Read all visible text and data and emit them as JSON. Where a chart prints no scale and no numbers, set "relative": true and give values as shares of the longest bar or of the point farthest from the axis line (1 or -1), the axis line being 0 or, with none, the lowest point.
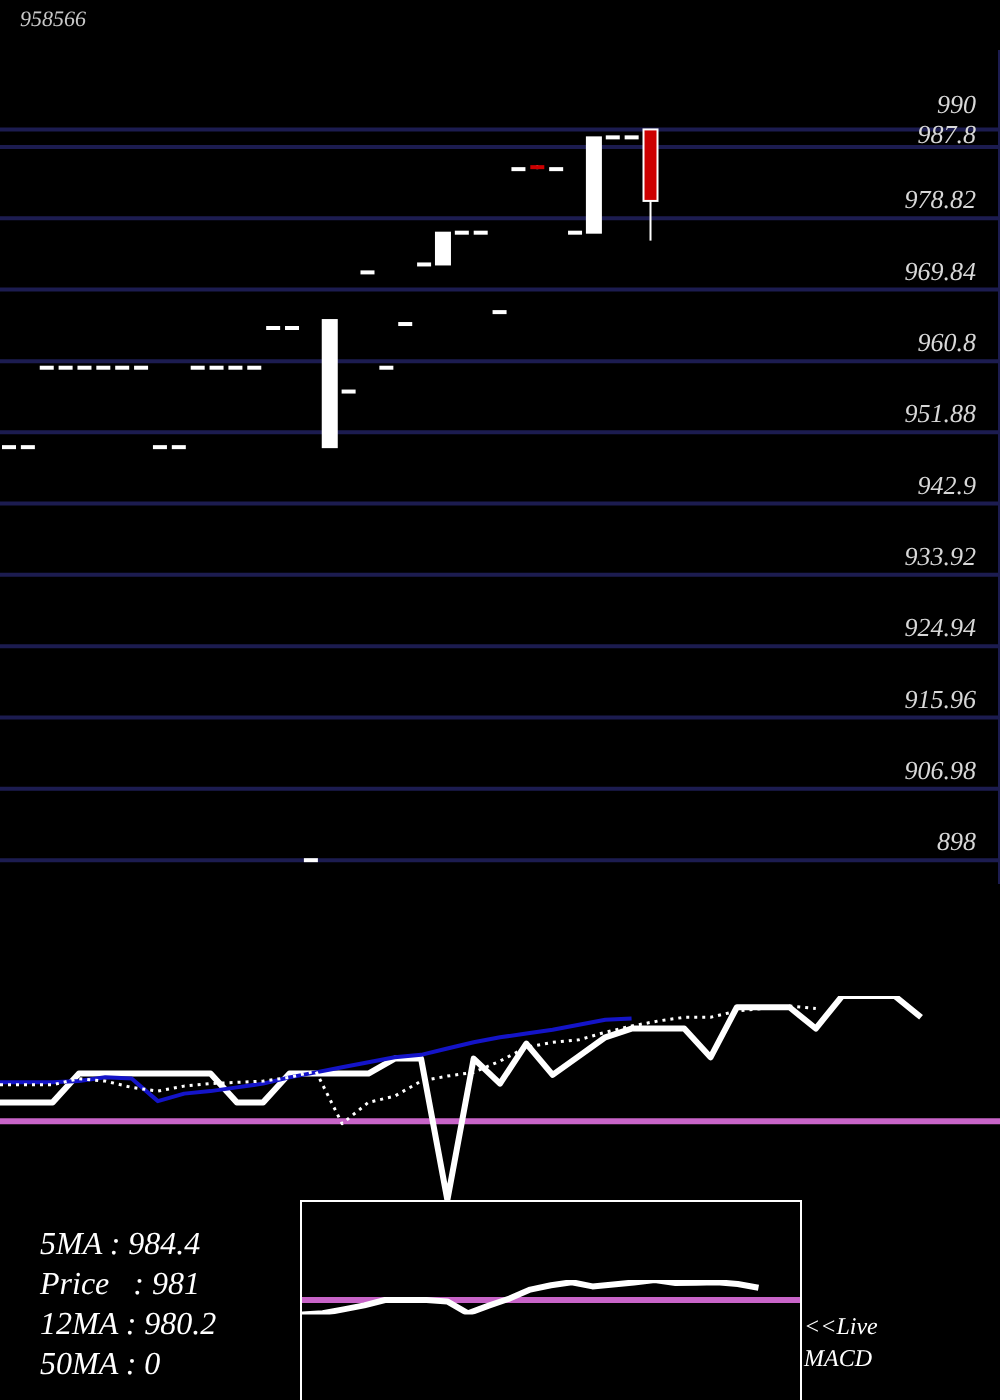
{
  "chart_data": [
    {
      "type": "candlestick",
      "title": "958566",
      "categories": [
        null,
        null,
        null,
        null,
        null,
        null,
        null,
        null,
        null,
        null,
        null,
        null,
        null,
        null,
        null,
        null,
        null,
        null,
        null,
        null,
        null,
        null,
        null,
        null,
        null,
        null,
        null,
        null,
        null,
        null,
        null,
        null,
        null,
        null,
        null,
        null,
        null,
        null,
        null,
        null,
        null,
        null,
        null,
        null,
        null,
        null,
        null,
        null,
        null,
        null,
        null,
        null,
        null
      ],
      "ohlc": [
        [
          950,
          950,
          950,
          950
        ],
        [
          950,
          950,
          950,
          950
        ],
        [
          960,
          960,
          960,
          960
        ],
        [
          960,
          960,
          960,
          960
        ],
        [
          960,
          960,
          960,
          960
        ],
        [
          960,
          960,
          960,
          960
        ],
        [
          960,
          960,
          960,
          960
        ],
        [
          960,
          960,
          960,
          960
        ],
        [
          950,
          950,
          950,
          950
        ],
        [
          950,
          950,
          950,
          950
        ],
        [
          960,
          960,
          960,
          960
        ],
        [
          960,
          960,
          960,
          960
        ],
        [
          960,
          960,
          960,
          960
        ],
        [
          960,
          960,
          960,
          960
        ],
        [
          965,
          965,
          965,
          965
        ],
        [
          965,
          965,
          965,
          965
        ],
        [
          898,
          898,
          898,
          898
        ],
        [
          950,
          966,
          950,
          966
        ],
        [
          957,
          957,
          957,
          957
        ],
        [
          972,
          972,
          972,
          972
        ],
        [
          960,
          960,
          960,
          960
        ],
        [
          965.5,
          965.5,
          965.5,
          965.5
        ],
        [
          973,
          973,
          973,
          973
        ],
        [
          973,
          977,
          973,
          977
        ],
        [
          977,
          977,
          977,
          977
        ],
        [
          977,
          977,
          977,
          977
        ],
        [
          967,
          967,
          967,
          967
        ],
        [
          985,
          985,
          985,
          985
        ],
        [
          985.5,
          985.5,
          985,
          985
        ],
        [
          985,
          985,
          985,
          985
        ],
        [
          977,
          977,
          977,
          977
        ],
        [
          977,
          989,
          977,
          989
        ],
        [
          989,
          989,
          989,
          989
        ],
        [
          989,
          989,
          989,
          989
        ],
        [
          990,
          990,
          976,
          981
        ],
        null,
        null,
        null,
        null,
        null,
        null,
        null,
        null,
        null,
        null,
        null,
        null,
        null,
        null,
        null,
        null,
        null,
        null
      ],
      "colors": [
        "#ffffff",
        "#ffffff",
        "#ffffff",
        "#ffffff",
        "#ffffff",
        "#ffffff",
        "#ffffff",
        "#ffffff",
        "#ffffff",
        "#ffffff",
        "#ffffff",
        "#ffffff",
        "#ffffff",
        "#ffffff",
        "#ffffff",
        "#ffffff",
        "#ffffff",
        "#ffffff",
        "#ffffff",
        "#ffffff",
        "#ffffff",
        "#ffffff",
        "#ffffff",
        "#ffffff",
        "#ffffff",
        "#ffffff",
        "#ffffff",
        "#ffffff",
        "#cc0000",
        "#ffffff",
        "#ffffff",
        "#ffffff",
        "#ffffff",
        "#ffffff",
        "#cc0000",
        null,
        null,
        null,
        null,
        null,
        null,
        null,
        null,
        null,
        null,
        null,
        null,
        null,
        null,
        null,
        null,
        null,
        null
      ],
      "ylim": [
        895,
        1000
      ],
      "yticks": [
        898,
        906.98,
        915.96,
        924.94,
        933.92,
        942.9,
        951.88,
        960.8,
        969.84,
        978.82,
        987.8,
        990
      ],
      "grid": "y",
      "tick_labels": "y",
      "annotations": [
        "5MA : 984.4",
        "Price   : 981",
        "12MA : 980.2",
        "50MA : 0"
      ]
    },
    {
      "type": "line",
      "relative": true,
      "tick_labels": false,
      "line_style": "solid",
      "categories": [
        null,
        null,
        null,
        null,
        null,
        null,
        null,
        null,
        null,
        null,
        null,
        null,
        null,
        null,
        null,
        null,
        null,
        null,
        null,
        null,
        null,
        null,
        null,
        null,
        null,
        null,
        null,
        null,
        null,
        null,
        null,
        null,
        null,
        null,
        null,
        null,
        null,
        null,
        null
      ],
      "series": [
        {
          "color": "#ffffff",
          "values": [
            0.15,
            0.15,
            0.15,
            0.38,
            0.38,
            0.38,
            0.38,
            0.38,
            0.38,
            0.15,
            0.15,
            0.38,
            0.38,
            0.38,
            0.38,
            0.5,
            0.5,
            -0.63,
            0.5,
            0.3,
            0.62,
            0.37,
            0.52,
            0.67,
            0.74,
            0.74,
            0.74,
            0.51,
            0.91,
            0.91,
            0.91,
            0.74,
            1,
            1,
            1,
            0.83,
            null,
            null,
            null
          ]
        },
        {
          "color": "#1414c8",
          "values": [
            0.31,
            0.31,
            0.31,
            0.32,
            0.35,
            0.34,
            0.16,
            0.22,
            0.24,
            0.27,
            0.3,
            0.35,
            0.39,
            0.43,
            0.47,
            0.51,
            0.53,
            0.58,
            0.63,
            0.67,
            0.7,
            0.73,
            0.77,
            0.81,
            0.82,
            null,
            null,
            null,
            null,
            null,
            null,
            null,
            null,
            null,
            null,
            null,
            null,
            null,
            null
          ]
        },
        {
          "color": "#ffffff",
          "line_style": "dotted",
          "values": [
            0.29,
            0.29,
            0.29,
            0.34,
            0.32,
            0.27,
            0.24,
            0.28,
            0.3,
            0.31,
            0.32,
            0.35,
            0.4,
            -0.02,
            0.15,
            0.2,
            0.32,
            0.36,
            0.39,
            0.48,
            0.59,
            0.63,
            0.65,
            0.71,
            0.76,
            0.8,
            0.83,
            0.83,
            0.88,
            0.9,
            0.92,
            0.9,
            null,
            null,
            null,
            null,
            null,
            null,
            null
          ]
        }
      ],
      "ref_lines": [
        {
          "axis": "y",
          "value": 0,
          "color": "#c864c8"
        }
      ]
    },
    {
      "type": "line",
      "relative": true,
      "tick_labels": false,
      "line_style": "solid",
      "categories": [
        null,
        null,
        null,
        null,
        null,
        null,
        null,
        null,
        null,
        null,
        null,
        null,
        null,
        null,
        null,
        null,
        null,
        null,
        null,
        null,
        null,
        null,
        null,
        null,
        null
      ],
      "series": [
        {
          "color": "#ffffff",
          "values": [
            -0.73,
            -0.66,
            -0.47,
            -0.27,
            0,
            0,
            0,
            -0.07,
            -0.67,
            -0.28,
            0.07,
            0.52,
            0.74,
            0.89,
            0.68,
            0.77,
            0.88,
            1,
            0.85,
            0.86,
            0.89,
            0.8,
            0.61,
            null,
            null
          ]
        }
      ],
      "ref_lines": [
        {
          "axis": "y",
          "value": 0,
          "color": "#c864c8"
        }
      ],
      "annotations": [
        "<<Live MACD"
      ]
    }
  ]
}
